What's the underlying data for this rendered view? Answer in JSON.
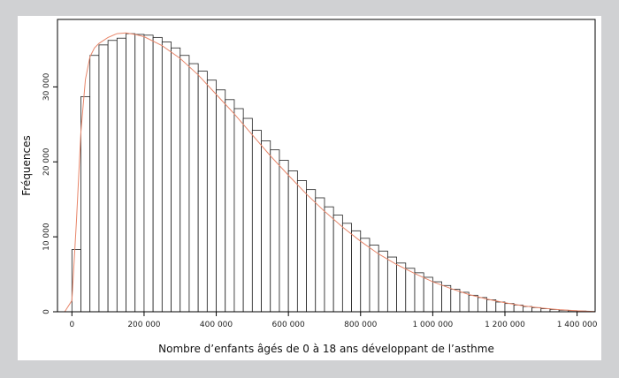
{
  "chart_data": {
    "type": "bar",
    "title": "",
    "xlabel": "Nombre d’enfants âgés de 0 à 18 ans développant de l’asthme",
    "ylabel": "Fréquences",
    "xlim": [
      -40000,
      1450000
    ],
    "ylim": [
      0,
      39000
    ],
    "bin_width": 25000,
    "x_ticks": [
      0,
      200000,
      400000,
      600000,
      800000,
      1000000,
      1200000,
      1400000
    ],
    "x_tick_labels": [
      "0",
      "200 000",
      "400 000",
      "600 000",
      "800 000",
      "1 000 000",
      "1 200 000",
      "1 400 000"
    ],
    "y_ticks": [
      0,
      10000,
      20000,
      30000
    ],
    "y_tick_labels": [
      "0",
      "10 000",
      "20 000",
      "30 000"
    ],
    "grid": false,
    "histogram": {
      "bin_starts": [
        0,
        25000,
        50000,
        75000,
        100000,
        125000,
        150000,
        175000,
        200000,
        225000,
        250000,
        275000,
        300000,
        325000,
        350000,
        375000,
        400000,
        425000,
        450000,
        475000,
        500000,
        525000,
        550000,
        575000,
        600000,
        625000,
        650000,
        675000,
        700000,
        725000,
        750000,
        775000,
        800000,
        825000,
        850000,
        875000,
        900000,
        925000,
        950000,
        975000,
        1000000,
        1025000,
        1050000,
        1075000,
        1100000,
        1125000,
        1150000,
        1175000,
        1200000,
        1225000,
        1250000,
        1275000,
        1300000,
        1325000,
        1350000,
        1375000,
        1400000
      ],
      "frequencies": [
        8300,
        28700,
        34200,
        35600,
        36200,
        36500,
        37100,
        37000,
        36900,
        36600,
        36000,
        35200,
        34200,
        33100,
        32100,
        30900,
        29600,
        28300,
        27100,
        25800,
        24200,
        22800,
        21600,
        20200,
        18800,
        17500,
        16300,
        15200,
        14000,
        12900,
        11800,
        10800,
        9800,
        8900,
        8100,
        7300,
        6500,
        5800,
        5200,
        4600,
        4000,
        3500,
        3000,
        2600,
        2200,
        1900,
        1600,
        1300,
        1100,
        900,
        700,
        550,
        400,
        300,
        200,
        140,
        90
      ]
    },
    "density_curve": {
      "color": "#e8866a",
      "x": [
        -20000,
        0,
        12500,
        25000,
        37500,
        50000,
        62500,
        75000,
        100000,
        125000,
        150000,
        175000,
        200000,
        250000,
        300000,
        350000,
        400000,
        450000,
        500000,
        550000,
        600000,
        650000,
        700000,
        750000,
        800000,
        850000,
        900000,
        950000,
        1000000,
        1050000,
        1100000,
        1150000,
        1200000,
        1250000,
        1300000,
        1350000,
        1400000,
        1450000
      ],
      "y": [
        0,
        1500,
        12000,
        24000,
        31000,
        34000,
        35200,
        35800,
        36600,
        37100,
        37200,
        37000,
        36700,
        35500,
        33800,
        31600,
        29000,
        26400,
        23600,
        20800,
        18200,
        15700,
        13400,
        11300,
        9400,
        7700,
        6300,
        5100,
        4000,
        3100,
        2300,
        1700,
        1200,
        800,
        500,
        280,
        130,
        40
      ]
    }
  }
}
